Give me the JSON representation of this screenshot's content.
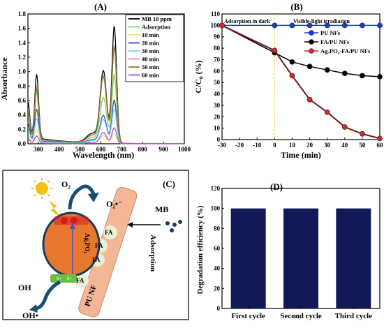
{
  "panels": {
    "A": "(A)",
    "B": "(B)",
    "C": "(C)",
    "D": "(D)"
  },
  "colors": {
    "mb": "#000000",
    "ads": "#7fd35f",
    "t10": "#e8e36a",
    "t20": "#2f46c8",
    "t30": "#7fd3e8",
    "t40": "#f08fb0",
    "t50": "#8a7a2a",
    "t60": "#b94cd1",
    "pu": "#1a3ad9",
    "fa": "#000000",
    "ag": "#d12a2a",
    "bar": "#131857"
  },
  "chart_data": [
    {
      "type": "line",
      "panel": "A",
      "xlabel": "Wavelength (nm)",
      "ylabel": "Absorbance",
      "xlim": [
        250,
        1000
      ],
      "ylim": [
        0.0,
        1.8
      ],
      "xticks": [
        300,
        400,
        500,
        600,
        700,
        800,
        900,
        1000
      ],
      "yticks": [
        0.0,
        0.2,
        0.4,
        0.6,
        0.8,
        1.0,
        1.2,
        1.4,
        1.6,
        1.8
      ],
      "legend": "top-right",
      "series": [
        {
          "name": "MB 10 ppm",
          "peak300": 0.88,
          "peak615": 0.98,
          "peak664": 1.62
        },
        {
          "name": "Adsorption",
          "peak300": 0.66,
          "peak615": 0.62,
          "peak664": 0.95
        },
        {
          "name": "10 min",
          "peak300": 0.18,
          "peak615": 0.11,
          "peak664": 0.14
        },
        {
          "name": "20 min",
          "peak300": 0.44,
          "peak615": 0.38,
          "peak664": 0.6
        },
        {
          "name": "30 min",
          "peak300": 0.32,
          "peak615": 0.33,
          "peak664": 0.48
        },
        {
          "name": "40 min",
          "peak300": 0.74,
          "peak615": 0.92,
          "peak664": 1.36
        },
        {
          "name": "50 min",
          "peak300": 0.7,
          "peak615": 0.9,
          "peak664": 1.33
        },
        {
          "name": "60 min",
          "peak300": 0.1,
          "peak615": 0.15,
          "peak664": 0.22
        }
      ]
    },
    {
      "type": "line",
      "panel": "B",
      "xlabel": "Time (min)",
      "ylabel": "C/C₀ (%)",
      "xlim": [
        -30,
        60
      ],
      "ylim": [
        0,
        110
      ],
      "xticks": [
        -30,
        -20,
        -10,
        0,
        10,
        20,
        30,
        40,
        50,
        60
      ],
      "yticks": [
        0,
        10,
        20,
        30,
        40,
        50,
        60,
        70,
        80,
        90,
        100,
        110
      ],
      "annotations": [
        "Adsorption in dark",
        "Visible-light irradiation"
      ],
      "legend": "top-right",
      "series": [
        {
          "name": "PU NFs",
          "x": [
            -30,
            0,
            10,
            20,
            30,
            40,
            50,
            60
          ],
          "values": [
            100,
            100,
            100,
            100,
            100,
            100,
            100,
            100
          ]
        },
        {
          "name": "FA/PU NFs",
          "x": [
            -30,
            0,
            10,
            20,
            30,
            40,
            50,
            60
          ],
          "values": [
            100,
            76,
            68,
            64,
            61,
            58,
            56,
            55
          ]
        },
        {
          "name": "Ag₃PO₄-FA/PU NFs",
          "x": [
            -30,
            0,
            10,
            20,
            30,
            40,
            50,
            60
          ],
          "values": [
            100,
            78,
            56,
            35,
            24,
            11,
            5,
            1
          ]
        }
      ]
    },
    {
      "type": "bar",
      "panel": "D",
      "ylabel": "Degradation efficiency (%)",
      "categories": [
        "First cycle",
        "Second cycle",
        "Third cycle"
      ],
      "values": [
        100,
        100,
        100
      ],
      "ylim": [
        0,
        120
      ],
      "yticks": [
        0,
        20,
        40,
        60,
        80,
        100,
        120
      ]
    }
  ],
  "diagram_c": {
    "o2": "O₂",
    "o2_radical": "O₂•⁻",
    "mb": "MB",
    "fa": "FA",
    "ag3po4": "Ag₃PO₄",
    "adsorption": "Adsorption",
    "oh": "OH",
    "oh_radical": "OH•",
    "hplus": "h+",
    "pu_nf": "PU NF"
  }
}
